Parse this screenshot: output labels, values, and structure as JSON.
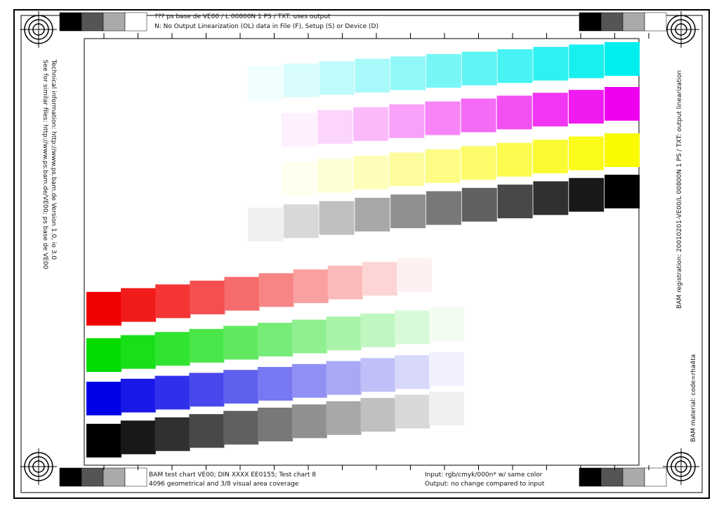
{
  "header": {
    "line1": "??? ps base de VE00 / L 00800N 1 PS / TXT: uses output",
    "line2": "N: No Output Linearization (OL) data in File (F), Setup (S) or Device (D)"
  },
  "footer": {
    "left1": "BAM test chart VE00; DIN XXXX EE0155; Test chart 8",
    "left2": "4096 geometrical and 3/8 visual area coverage",
    "right1": "Input: rgb/cmyk/000n* w/ same color",
    "right2": "Output: no change compared to input"
  },
  "side": {
    "left1": "See for similar files: http://www.ps.bam.de/VE00; ps base de VE00",
    "left2": "Technical information: http://www.ps.bam.de  Version 1.0, io 3.0",
    "right1": "BAM registration: 20010201-VE00/L 00800N 1 PS / TXT: output linearization",
    "right2": "BAM material: code=rha4ta"
  }
}
